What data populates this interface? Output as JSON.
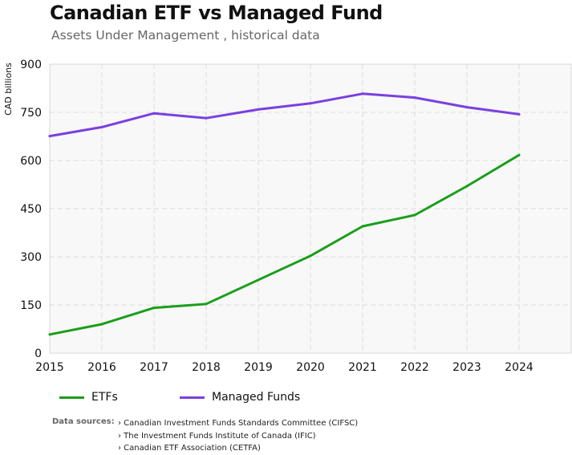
{
  "chart_data": {
    "type": "line",
    "title": "Canadian ETF vs Managed Fund",
    "subtitle": "Assets Under Management , historical data",
    "ylabel": "CAD  billions",
    "xlabel": "",
    "x": [
      "2015",
      "2016",
      "2017",
      "2018",
      "2019",
      "2020",
      "2021",
      "2022",
      "2023",
      "2024"
    ],
    "ylim": [
      0,
      900
    ],
    "yticks": [
      "0",
      "150",
      "300",
      "450",
      "600",
      "750",
      "900"
    ],
    "grid": true,
    "legend_position": "bottom-left",
    "series": [
      {
        "name": "ETFs",
        "color": "#1a9e1a",
        "values": [
          58,
          90,
          141,
          153,
          228,
          303,
          395,
          430,
          520,
          617
        ]
      },
      {
        "name": "Managed Funds",
        "color": "#7b3fe0",
        "values": [
          676,
          704,
          747,
          732,
          759,
          778,
          808,
          796,
          766,
          744
        ]
      }
    ]
  },
  "sources": {
    "label": "Data sources:",
    "items": [
      "› Canadian Investment Funds Standards Committee (CIFSC)",
      "› The Investment Funds Institute of Canada (IFIC)",
      "› Canadian ETF Association (CETFA)"
    ]
  }
}
